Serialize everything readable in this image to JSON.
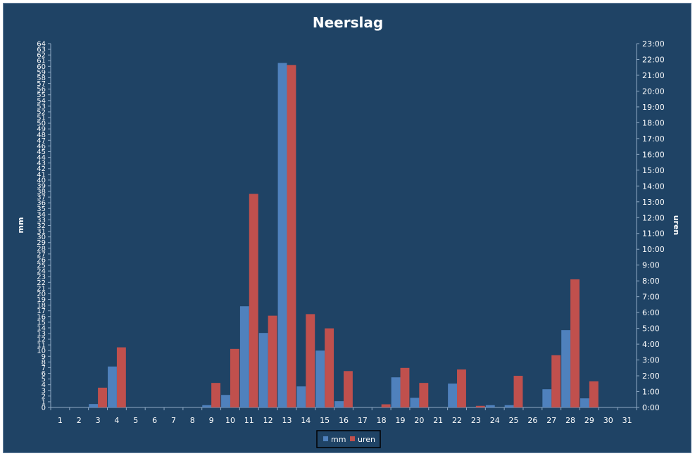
{
  "chart_data": {
    "type": "bar",
    "title": "Neerslag",
    "xlabel": "",
    "ylabel": "mm",
    "y2label": "uren",
    "categories": [
      "1",
      "2",
      "3",
      "4",
      "5",
      "6",
      "7",
      "8",
      "9",
      "10",
      "11",
      "12",
      "13",
      "14",
      "15",
      "16",
      "17",
      "18",
      "19",
      "20",
      "21",
      "22",
      "23",
      "24",
      "25",
      "26",
      "27",
      "28",
      "29",
      "30",
      "31"
    ],
    "ylim": [
      0,
      64
    ],
    "y2lim_hours": [
      0,
      23
    ],
    "y2_tick_labels": [
      "0:00",
      "1:00",
      "2:00",
      "3:00",
      "4:00",
      "5:00",
      "6:00",
      "7:00",
      "8:00",
      "9:00",
      "10:00",
      "11:00",
      "12:00",
      "13:00",
      "14:00",
      "15:00",
      "16:00",
      "17:00",
      "18:00",
      "19:00",
      "20:00",
      "21:00",
      "22:00",
      "23:00"
    ],
    "series": [
      {
        "name": "mm",
        "color": "#4f81bd",
        "axis": "left",
        "values": [
          0,
          0,
          0.6,
          7.2,
          0,
          0,
          0,
          0,
          0.4,
          2.2,
          17.8,
          13.1,
          60.6,
          3.7,
          10.0,
          1.1,
          0,
          0,
          5.3,
          1.7,
          0,
          4.2,
          0,
          0.4,
          0.4,
          0,
          3.2,
          13.6,
          1.6,
          0,
          0
        ]
      },
      {
        "name": "uren",
        "color": "#c0504d",
        "axis": "right",
        "values": [
          0,
          0,
          1.25,
          3.8,
          0,
          0,
          0,
          0,
          1.55,
          3.7,
          13.5,
          5.8,
          21.65,
          5.9,
          5.0,
          2.3,
          0,
          0.2,
          2.5,
          1.55,
          0,
          2.4,
          0.1,
          0,
          2.0,
          0,
          3.3,
          8.1,
          1.65,
          0,
          0
        ]
      }
    ],
    "legend": "bottom-center",
    "grid": false
  }
}
